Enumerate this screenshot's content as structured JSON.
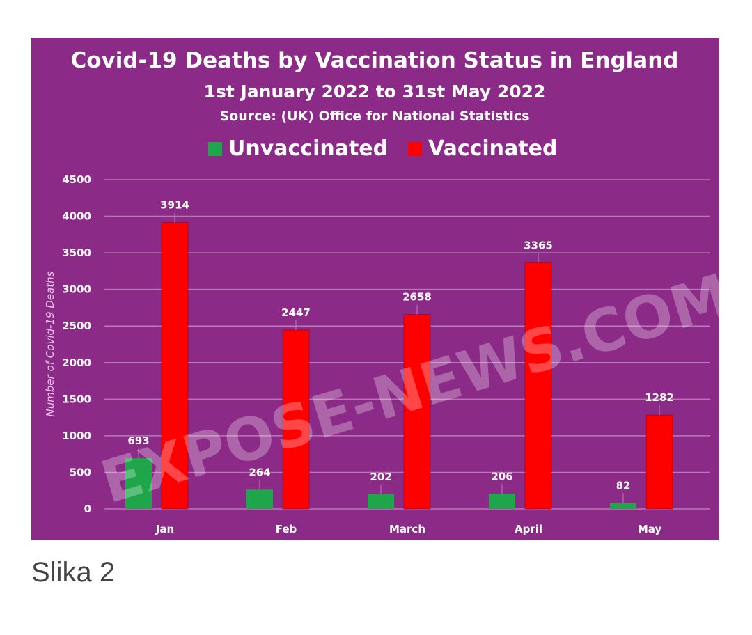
{
  "caption": "Slika 2",
  "watermark": "EXPOSE-NEWS.COM",
  "colors": {
    "background": "#8b2a87",
    "unvaccinated": "#1fa64a",
    "vaccinated": "#ff0000",
    "gridline": "#b57ab2"
  },
  "chart_data": {
    "type": "bar",
    "title": "Covid-19 Deaths by Vaccination Status in England",
    "subtitle": "1st January 2022 to 31st May 2022",
    "source": "Source:  (UK) Office for National Statistics",
    "ylabel": "Number of Covid-19 Deaths",
    "xlabel": "",
    "categories": [
      "Jan",
      "Feb",
      "March",
      "April",
      "May"
    ],
    "series": [
      {
        "name": "Unvaccinated",
        "values": [
          693,
          264,
          202,
          206,
          82
        ]
      },
      {
        "name": "Vaccinated",
        "values": [
          3914,
          2447,
          2658,
          3365,
          1282
        ]
      }
    ],
    "ylim": [
      0,
      4500
    ],
    "yticks": [
      0,
      500,
      1000,
      1500,
      2000,
      2500,
      3000,
      3500,
      4000,
      4500
    ],
    "grid": true,
    "legend": "top"
  }
}
